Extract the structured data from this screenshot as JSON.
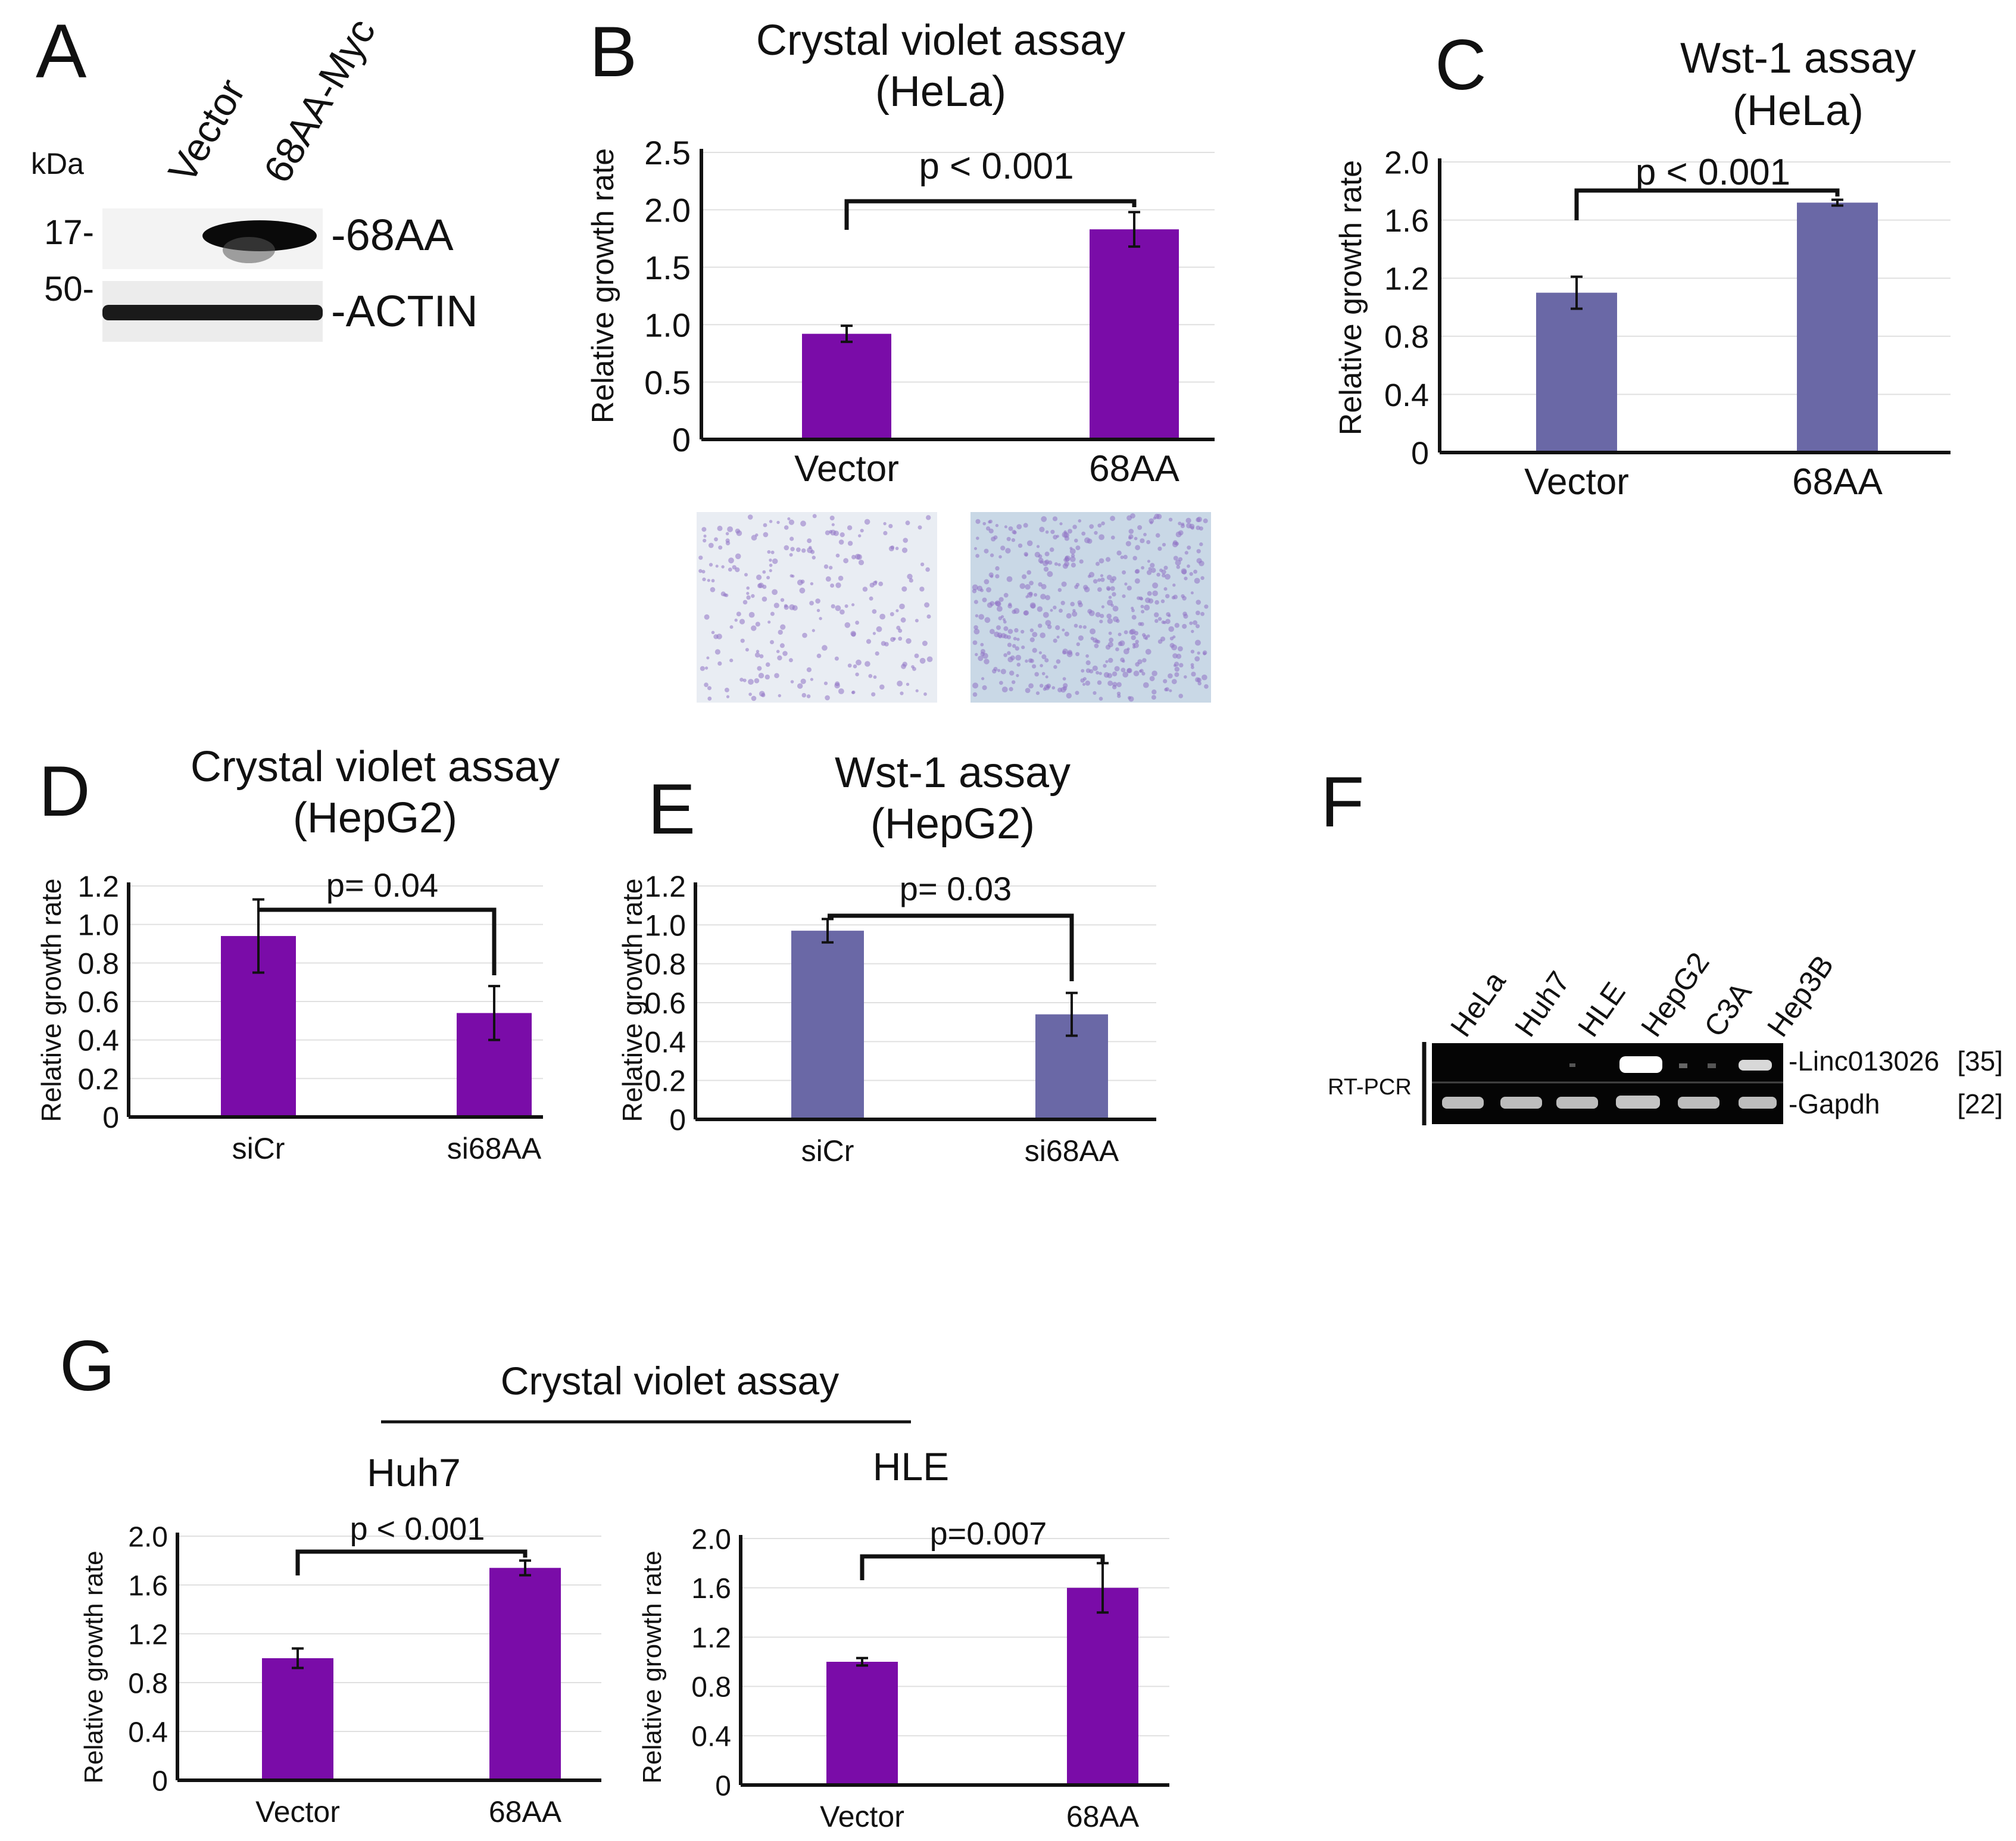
{
  "colors": {
    "purple": "#7a0ca8",
    "slate": "#6a68a6",
    "axis": "#111111",
    "gel_bg": "#050505"
  },
  "panel_letters": {
    "A": "A",
    "B": "B",
    "C": "C",
    "D": "D",
    "E": "E",
    "F": "F",
    "G": "G"
  },
  "western": {
    "kda": "kDa",
    "lanes": [
      "Vector",
      "68AA-Myc"
    ],
    "markers": [
      "17-",
      "50-"
    ],
    "bands": [
      "-68AA",
      "-ACTIN"
    ]
  },
  "rtpcr": {
    "label": "RT-PCR",
    "lanes": [
      "HeLa",
      "Huh7",
      "HLE",
      "HepG2",
      "C3A",
      "Hep3B"
    ],
    "genes": [
      "-Linc013026",
      "-Gapdh"
    ],
    "cycles": [
      "[35]",
      "[22]"
    ]
  },
  "panel_g_header": "Crystal violet assay",
  "chart_data": [
    {
      "id": "B",
      "type": "bar",
      "title": "Crystal violet assay",
      "subtitle": "(HeLa)",
      "xlabel": "",
      "ylabel": "Relative growth rate",
      "categories": [
        "Vector",
        "68AA"
      ],
      "values": [
        0.92,
        1.83
      ],
      "errors": [
        0.07,
        0.15
      ],
      "ylim": [
        0,
        2.5
      ],
      "ticks": [
        0,
        0.5,
        1.0,
        1.5,
        2.0,
        2.5
      ],
      "tick_labels": [
        "0",
        "0.5",
        "1.0",
        "1.5",
        "2.0",
        "2.5"
      ],
      "pvalue": "p < 0.001",
      "color": "#7a0ca8",
      "grid": true
    },
    {
      "id": "C",
      "type": "bar",
      "title": "Wst-1 assay",
      "subtitle": "(HeLa)",
      "xlabel": "",
      "ylabel": "Relative growth rate",
      "categories": [
        "Vector",
        "68AA"
      ],
      "values": [
        1.1,
        1.72
      ],
      "errors": [
        0.11,
        0.02
      ],
      "ylim": [
        0,
        2.0
      ],
      "ticks": [
        0,
        0.4,
        0.8,
        1.2,
        1.6,
        2.0
      ],
      "tick_labels": [
        "0",
        "0.4",
        "0.8",
        "1.2",
        "1.6",
        "2.0"
      ],
      "pvalue": "p < 0.001",
      "color": "#6a68a6",
      "grid": true
    },
    {
      "id": "D",
      "type": "bar",
      "title": "Crystal violet assay",
      "subtitle": "(HepG2)",
      "xlabel": "",
      "ylabel": "Relative growth rate",
      "categories": [
        "siCr",
        "si68AA"
      ],
      "values": [
        0.94,
        0.54
      ],
      "errors": [
        0.19,
        0.14
      ],
      "ylim": [
        0,
        1.2
      ],
      "ticks": [
        0,
        0.2,
        0.4,
        0.6,
        0.8,
        1.0,
        1.2
      ],
      "tick_labels": [
        "0",
        "0.2",
        "0.4",
        "0.6",
        "0.8",
        "1.0",
        "1.2"
      ],
      "pvalue": "p= 0.04",
      "color": "#7a0ca8",
      "grid": true
    },
    {
      "id": "E",
      "type": "bar",
      "title": "Wst-1 assay",
      "subtitle": "(HepG2)",
      "xlabel": "",
      "ylabel": "Relative growth rate",
      "categories": [
        "siCr",
        "si68AA"
      ],
      "values": [
        0.97,
        0.54
      ],
      "errors": [
        0.06,
        0.11
      ],
      "ylim": [
        0,
        1.2
      ],
      "ticks": [
        0,
        0.2,
        0.4,
        0.6,
        0.8,
        1.0,
        1.2
      ],
      "tick_labels": [
        "0",
        "0.2",
        "0.4",
        "0.6",
        "0.8",
        "1.0",
        "1.2"
      ],
      "pvalue": "p= 0.03",
      "color": "#6a68a6",
      "grid": true
    },
    {
      "id": "G1",
      "type": "bar",
      "title": "Huh7",
      "subtitle": "",
      "xlabel": "",
      "ylabel": "Relative growth rate",
      "categories": [
        "Vector",
        "68AA"
      ],
      "values": [
        1.0,
        1.74
      ],
      "errors": [
        0.08,
        0.06
      ],
      "ylim": [
        0,
        2.0
      ],
      "ticks": [
        0,
        0.4,
        0.8,
        1.2,
        1.6,
        2.0
      ],
      "tick_labels": [
        "0",
        "0.4",
        "0.8",
        "1.2",
        "1.6",
        "2.0"
      ],
      "pvalue": "p < 0.001",
      "color": "#7a0ca8",
      "grid": true
    },
    {
      "id": "G2",
      "type": "bar",
      "title": "HLE",
      "subtitle": "",
      "xlabel": "",
      "ylabel": "Relative growth rate",
      "categories": [
        "Vector",
        "68AA"
      ],
      "values": [
        1.0,
        1.6
      ],
      "errors": [
        0.03,
        0.2
      ],
      "ylim": [
        0,
        2.0
      ],
      "ticks": [
        0,
        0.4,
        0.8,
        1.2,
        1.6,
        2.0
      ],
      "tick_labels": [
        "0",
        "0.4",
        "0.8",
        "1.2",
        "1.6",
        "2.0"
      ],
      "pvalue": "p=0.007",
      "color": "#7a0ca8",
      "grid": true
    }
  ]
}
